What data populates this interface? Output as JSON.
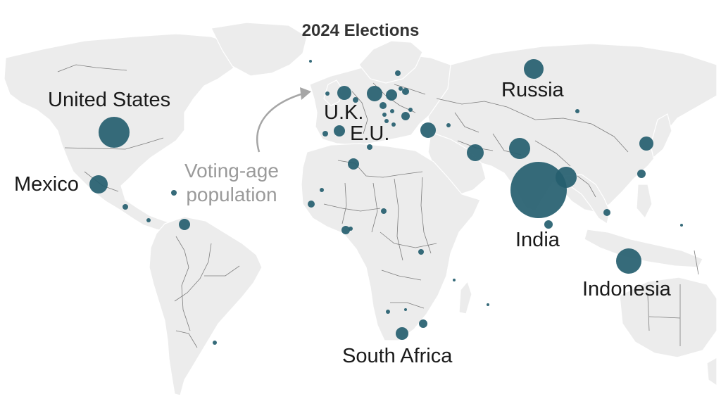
{
  "title": "2024 Elections",
  "legend_label_line1": "Voting-age",
  "legend_label_line2": "population",
  "colors": {
    "bubble": "#255e6f",
    "land": "#ececec",
    "border": "#7d7d7d",
    "arrow": "#a6a6a6",
    "title": "#333333",
    "legend_text": "#9a9a9a"
  },
  "labels": {
    "united_states": "United States",
    "mexico": "Mexico",
    "uk": "U.K.",
    "eu": "E.U.",
    "russia": "Russia",
    "india": "India",
    "indonesia": "Indonesia",
    "south_africa": "South Africa"
  }
}
